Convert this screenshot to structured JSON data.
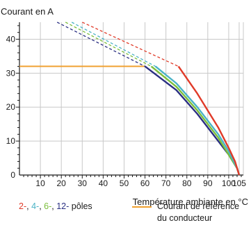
{
  "chart_data": {
    "type": "line",
    "ylabel": "Courant en A",
    "xlabel": "Température ambiante en °C",
    "xlim": [
      0,
      107
    ],
    "ylim": [
      0,
      45
    ],
    "xticks": [
      10,
      20,
      30,
      40,
      50,
      60,
      70,
      80,
      90,
      100,
      105
    ],
    "yticks": [
      0,
      10,
      20,
      30,
      40
    ],
    "grid": true,
    "reference_current": {
      "label": "Courant de référence du conducteur",
      "value": 32,
      "color": "#f0a030"
    },
    "series": [
      {
        "name": "2-",
        "color": "#e03a28",
        "dashed": [
          [
            30,
            45
          ],
          [
            76,
            32
          ]
        ],
        "solid": [
          [
            76,
            32
          ],
          [
            85,
            24
          ],
          [
            95,
            14
          ],
          [
            100,
            8
          ],
          [
            103,
            4
          ],
          [
            105,
            0
          ]
        ]
      },
      {
        "name": "4-",
        "color": "#4ab3c6",
        "dashed": [
          [
            25,
            45
          ],
          [
            65,
            32
          ]
        ],
        "solid": [
          [
            65,
            32
          ],
          [
            75,
            27
          ],
          [
            85,
            20
          ],
          [
            95,
            12
          ],
          [
            100,
            7
          ],
          [
            104,
            2
          ],
          [
            105,
            0
          ]
        ]
      },
      {
        "name": "6-",
        "color": "#7bbf3a",
        "dashed": [
          [
            22,
            45
          ],
          [
            63,
            32
          ]
        ],
        "solid": [
          [
            63,
            32
          ],
          [
            75,
            26
          ],
          [
            85,
            19
          ],
          [
            95,
            11
          ],
          [
            100,
            6
          ],
          [
            104,
            2
          ],
          [
            105,
            0
          ]
        ]
      },
      {
        "name": "12-",
        "color": "#2a2f82",
        "dashed": [
          [
            18,
            45
          ],
          [
            60,
            32
          ]
        ],
        "solid": [
          [
            60,
            32
          ],
          [
            75,
            25
          ],
          [
            85,
            18
          ],
          [
            95,
            10
          ],
          [
            100,
            6
          ],
          [
            104,
            2
          ],
          [
            105,
            0
          ]
        ]
      }
    ]
  },
  "legend": {
    "series_sep": ",",
    "series_suffix": "pôles",
    "reference_line1": "Courant de référence",
    "reference_line2": "du conducteur"
  }
}
